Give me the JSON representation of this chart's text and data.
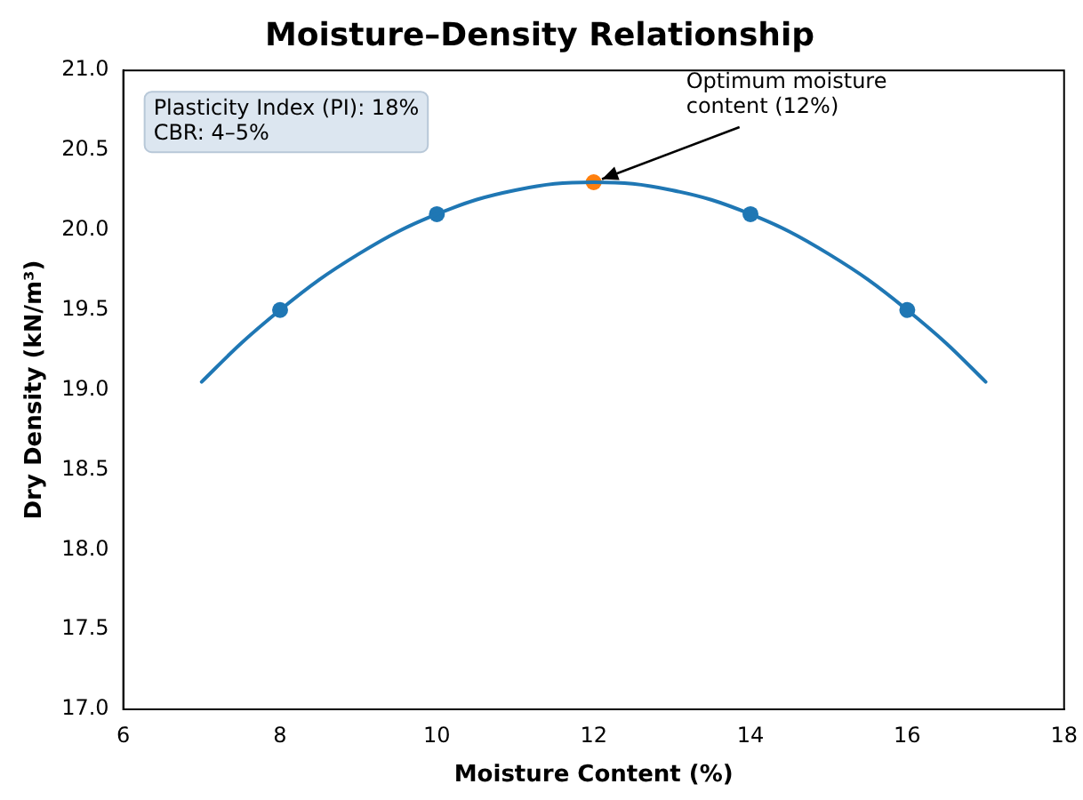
{
  "chart_data": {
    "type": "line",
    "title": "Moisture–Density Relationship",
    "xlabel": "Moisture Content (%)",
    "ylabel": "Dry Density (kN/m³)",
    "xlim": [
      6,
      18
    ],
    "xticks": [
      6,
      8,
      10,
      12,
      14,
      16,
      18
    ],
    "ylim": [
      17,
      21
    ],
    "yticks": [
      {
        "value": 17,
        "label": "17.0"
      },
      {
        "value": 17.5,
        "label": "17.5"
      },
      {
        "value": 18,
        "label": "18.0"
      },
      {
        "value": 18.5,
        "label": "18.5"
      },
      {
        "value": 19,
        "label": "19.0"
      },
      {
        "value": 19.5,
        "label": "19.5"
      },
      {
        "value": 20,
        "label": "20.0"
      },
      {
        "value": 20.5,
        "label": "20.5"
      },
      {
        "value": 21,
        "label": "21.0"
      }
    ],
    "series": [
      {
        "type": "line",
        "marker": "none",
        "color": "#1f77b4",
        "x": [
          7,
          7.5,
          8,
          8.5,
          9,
          9.5,
          10,
          10.5,
          11,
          11.5,
          12,
          12.5,
          13,
          13.5,
          14,
          14.5,
          15,
          15.5,
          16,
          16.5,
          17
        ],
        "values": [
          19.05,
          19.29,
          19.5,
          19.69,
          19.85,
          19.99,
          20.1,
          20.19,
          20.25,
          20.29,
          20.3,
          20.29,
          20.25,
          20.19,
          20.1,
          19.99,
          19.85,
          19.69,
          19.5,
          19.29,
          19.05
        ]
      },
      {
        "type": "scatter",
        "marker": "circle",
        "color": "#1f77b4",
        "x": [
          8,
          10,
          14,
          16
        ],
        "values": [
          19.5,
          20.1,
          20.1,
          19.5
        ]
      },
      {
        "type": "scatter",
        "marker": "circle",
        "color": "#ff7f0e",
        "x": [
          12
        ],
        "values": [
          20.3
        ]
      }
    ],
    "annotations": [
      {
        "text": "Optimum moisture\ncontent (12%)",
        "x": 12,
        "y": 20.3
      },
      "Plasticity Index (PI): 18%\nCBR: 4–5%"
    ]
  }
}
